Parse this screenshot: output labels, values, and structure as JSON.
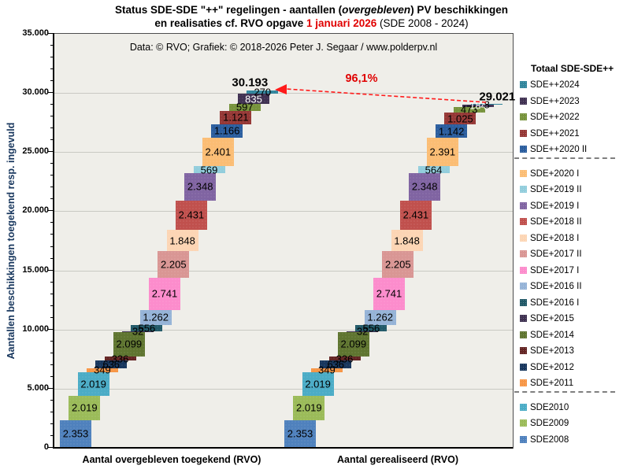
{
  "title": {
    "line1_prefix": "Status SDE-SDE \"++\" regelingen  - aantallen (",
    "line1_italic": "overgebleven",
    "line1_suffix": ") PV beschikkingen",
    "line2_prefix": "en realisaties cf. RVO opgave ",
    "line2_highlight": "1 januari 2026",
    "line2_suffix": " (SDE 2008 - 2024)"
  },
  "attribution": "Data: © RVO;  Grafiek:  © 2018-2026 Peter J. Segaar / www.polderpv.nl",
  "annotation": {
    "percent": "96,1%",
    "left_total": "30.193",
    "right_total": "29.021"
  },
  "y_axis": {
    "title": "Aantallen beschikkingen toegekend resp. ingevuld",
    "min": 0,
    "max": 35000,
    "major_step": 5000,
    "minor_step": 1000
  },
  "legend": {
    "header": "Totaal SDE-SDE++",
    "separators_after": [
      "SDE++2020 II",
      "SDE+2011"
    ]
  },
  "colors": {
    "accent_red": "#e00000",
    "axis_title": "#17365d",
    "plot_bg": "#efeee9",
    "grid": "#c9c9c3"
  },
  "chart_data": {
    "type": "bar",
    "subtype": "stacked-waterfall-cascade",
    "categories": [
      "Aantal overgebleven toegekend (RVO)",
      "Aantal gerealiseerd (RVO)"
    ],
    "ylim": [
      0,
      35000
    ],
    "grid": true,
    "legend_position": "right",
    "totals": [
      30193,
      29021
    ],
    "realized_percent": "96,1%",
    "series": [
      {
        "name": "SDE2008",
        "color": "#4f81bd",
        "values": [
          2353,
          2353
        ]
      },
      {
        "name": "SDE2009",
        "color": "#9bbb59",
        "values": [
          2019,
          2019
        ]
      },
      {
        "name": "SDE2010",
        "color": "#4bacc6",
        "values": [
          2019,
          2019
        ]
      },
      {
        "name": "SDE+2011",
        "color": "#f79646",
        "values": [
          349,
          349
        ]
      },
      {
        "name": "SDE+2012",
        "color": "#17365d",
        "values": [
          636,
          636
        ]
      },
      {
        "name": "SDE+2013",
        "color": "#632423",
        "values": [
          336,
          336
        ]
      },
      {
        "name": "SDE+2014",
        "color": "#5f7530",
        "values": [
          2099,
          2099
        ]
      },
      {
        "name": "SDE+2015",
        "color": "#3f3151",
        "values": [
          32,
          32
        ]
      },
      {
        "name": "SDE+2016 I",
        "color": "#215968",
        "values": [
          556,
          556
        ]
      },
      {
        "name": "SDE+2016 II",
        "color": "#95b3d7",
        "values": [
          1262,
          1262
        ]
      },
      {
        "name": "SDE+2017 I",
        "color": "#fc8ccc",
        "values": [
          2741,
          2741
        ]
      },
      {
        "name": "SDE+2017 II",
        "color": "#d99694",
        "values": [
          2205,
          2205
        ]
      },
      {
        "name": "SDE+2018 I",
        "color": "#fcd5b4",
        "values": [
          1848,
          1848
        ]
      },
      {
        "name": "SDE+2018 II",
        "color": "#c0504d",
        "values": [
          2431,
          2431
        ]
      },
      {
        "name": "SDE+2019 I",
        "color": "#8064a2",
        "values": [
          2348,
          2348
        ]
      },
      {
        "name": "SDE+2019 II",
        "color": "#92cddc",
        "values": [
          569,
          564
        ]
      },
      {
        "name": "SDE+2020 I",
        "color": "#fbbd74",
        "values": [
          2401,
          2391
        ]
      },
      {
        "name": "SDE++2020 II",
        "color": "#2a5d9e",
        "values": [
          1166,
          1142
        ]
      },
      {
        "name": "SDE++2021",
        "color": "#953735",
        "values": [
          1121,
          1025
        ]
      },
      {
        "name": "SDE++2022",
        "color": "#77933c",
        "values": [
          597,
          473
        ]
      },
      {
        "name": "SDE++2023",
        "color": "#403152",
        "values": [
          835,
          184
        ],
        "label_color": "#ffffff"
      },
      {
        "name": "SDE++2024",
        "color": "#31859c",
        "values": [
          270,
          8
        ]
      }
    ]
  }
}
